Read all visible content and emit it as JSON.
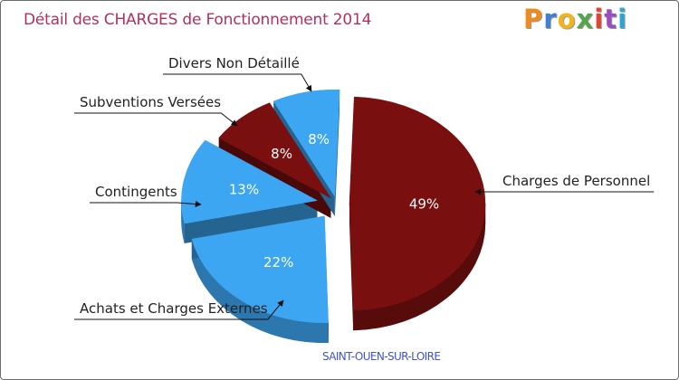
{
  "logo": {
    "letters": [
      "P",
      "r",
      "o",
      "x",
      "i",
      "t",
      "i"
    ],
    "colors": [
      "#f08a1c",
      "#3f7fd0",
      "#f0b41c",
      "#52a64a",
      "#e2442f",
      "#9a4fc0",
      "#2ea4d4"
    ]
  },
  "subtitle": "SAINT-OUEN-SUR-LOIRE",
  "chart_data": {
    "type": "pie",
    "title": "Détail des CHARGES de Fonctionnement 2014",
    "unit": "%",
    "slices": [
      {
        "label": "Charges de Personnel",
        "value": 49,
        "value_label": "49%",
        "color": "#7a0f0f"
      },
      {
        "label": "Achats et Charges Externes",
        "value": 22,
        "value_label": "22%",
        "color": "#3da6f2"
      },
      {
        "label": "Contingents",
        "value": 13,
        "value_label": "13%",
        "color": "#3da6f2"
      },
      {
        "label": "Subventions Versées",
        "value": 8,
        "value_label": "8%",
        "color": "#7a0f0f"
      },
      {
        "label": "Divers Non Détaillé",
        "value": 8,
        "value_label": "8%",
        "color": "#3da6f2"
      }
    ]
  }
}
